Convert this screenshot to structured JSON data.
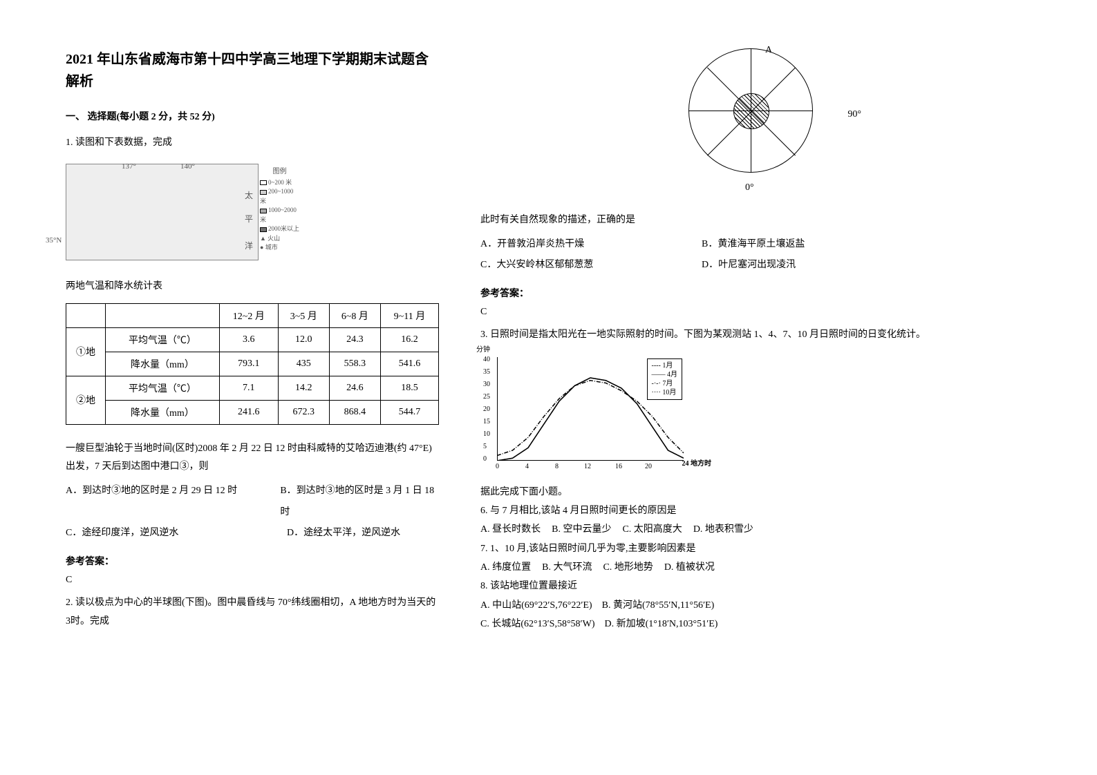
{
  "title": "2021 年山东省威海市第十四中学高三地理下学期期末试题含解析",
  "section1_title": "一、 选择题(每小题 2 分，共 52 分)",
  "q1": {
    "stem": "1. 读图和下表数据，完成",
    "map": {
      "lon1": "137°",
      "lon2": "140°",
      "lat": "35°N",
      "sea_top": "太",
      "sea_mid": "平",
      "sea_bot": "洋",
      "legend_title": "图例",
      "legend_items": [
        "0~200 米",
        "200~1000 米",
        "1000~2000 米",
        "2000米以上",
        "火山",
        "城市"
      ],
      "legend_colors": [
        "#ffffff",
        "#d0d0d0",
        "#a8a8a8",
        "#707070",
        "#000000",
        "#000000"
      ]
    },
    "table_title": "两地气温和降水统计表",
    "table": {
      "header": [
        "",
        "",
        "12~2 月",
        "3~5 月",
        "6~8 月",
        "9~11 月"
      ],
      "rows": [
        {
          "place": "①地",
          "metric": "平均气温（℃）",
          "v": [
            "3.6",
            "12.0",
            "24.3",
            "16.2"
          ]
        },
        {
          "place": "",
          "metric": "降水量（mm）",
          "v": [
            "793.1",
            "435",
            "558.3",
            "541.6"
          ]
        },
        {
          "place": "②地",
          "metric": "平均气温（℃）",
          "v": [
            "7.1",
            "14.2",
            "24.6",
            "18.5"
          ]
        },
        {
          "place": "",
          "metric": "降水量（mm）",
          "v": [
            "241.6",
            "672.3",
            "868.4",
            "544.7"
          ]
        }
      ]
    },
    "sub_stem": "一艘巨型油轮于当地时间(区时)2008 年 2 月 22 日 12 时由科威特的艾哈迈迪港(约 47°E)出发，7 天后到达图中港口③，则",
    "opts": {
      "A": "A．到达时③地的区时是 2 月 29 日 12 时",
      "B": "B．到达时③地的区时是 3 月 1 日 18时",
      "C": "C．途经印度洋，逆风逆水",
      "D": "D．途经太平洋，逆风逆水"
    },
    "ans_label": "参考答案：",
    "ans": "C"
  },
  "q2": {
    "stem": "2. 读以极点为中心的半球图(下图)。图中晨昏线与 70°纬线圈相切，A 地地方时为当天的 3时。完成",
    "fig": {
      "labA": "A",
      "lab90": "90°",
      "lab0": "0°"
    },
    "sub_stem": "此时有关自然现象的描述，正确的是",
    "opts": {
      "A": "A．开普敦沿岸炎热干燥",
      "B": "B．黄淮海平原土壤返盐",
      "C": "C．大兴安岭林区郁郁葱葱",
      "D": "D．叶尼塞河出现凌汛"
    },
    "ans_label": "参考答案：",
    "ans": "C"
  },
  "q3": {
    "stem": "3. 日照时间是指太阳光在一地实际照射的时间。下图为某观测站 1、4、7、10 月日照时间的日变化统计。",
    "chart": {
      "ylabel": "分钟",
      "xlabel": "24 地方时",
      "yticks": [
        "0",
        "5",
        "10",
        "15",
        "20",
        "25",
        "30",
        "35",
        "40"
      ],
      "xticks": [
        "0",
        "4",
        "8",
        "12",
        "16",
        "20"
      ],
      "legend": [
        "1月",
        "4月",
        "7月",
        "10月"
      ],
      "series": {
        "jan": [
          [
            0,
            0
          ],
          [
            24,
            0
          ]
        ],
        "apr": [
          [
            0,
            0
          ],
          [
            2,
            1
          ],
          [
            4,
            5
          ],
          [
            6,
            14
          ],
          [
            8,
            23
          ],
          [
            10,
            29
          ],
          [
            12,
            32
          ],
          [
            14,
            31
          ],
          [
            16,
            28
          ],
          [
            18,
            22
          ],
          [
            20,
            13
          ],
          [
            22,
            4
          ],
          [
            24,
            1
          ]
        ],
        "jul": [
          [
            0,
            2
          ],
          [
            2,
            4
          ],
          [
            4,
            9
          ],
          [
            6,
            17
          ],
          [
            8,
            24
          ],
          [
            10,
            29
          ],
          [
            12,
            31
          ],
          [
            14,
            30
          ],
          [
            16,
            27
          ],
          [
            18,
            23
          ],
          [
            20,
            17
          ],
          [
            22,
            9
          ],
          [
            24,
            3
          ]
        ],
        "oct": [
          [
            0,
            0
          ],
          [
            24,
            0
          ]
        ]
      },
      "colors": {
        "jan": "#000",
        "apr": "#000",
        "jul": "#000",
        "oct": "#000"
      },
      "dash": {
        "jan": "4,3",
        "apr": "1,0",
        "jul": "6,2,1,2",
        "oct": "2,2"
      }
    },
    "after_chart": "据此完成下面小题。",
    "sub6": "6.  与 7 月相比,该站 4 月日照时间更长的原因是",
    "opts6": {
      "A": "A.  昼长时数长",
      "B": "B.  空中云量少",
      "C": "C.  太阳高度大",
      "D": "D.  地表积雪少"
    },
    "sub7": "7.  1、10 月,该站日照时间几乎为零,主要影响因素是",
    "opts7": {
      "A": "A.  纬度位置",
      "B": "B.  大气环流",
      "C": "C.  地形地势",
      "D": "D.  植被状况"
    },
    "sub8": "8.  该站地理位置最接近",
    "opts8": {
      "A": "A.  中山站(69°22′S,76°22′E)",
      "B": "B.  黄河站(78°55′N,11°56′E)",
      "C": "C.  长城站(62°13′S,58°58′W)",
      "D": "D.  新加坡(1°18′N,103°51′E)"
    }
  }
}
